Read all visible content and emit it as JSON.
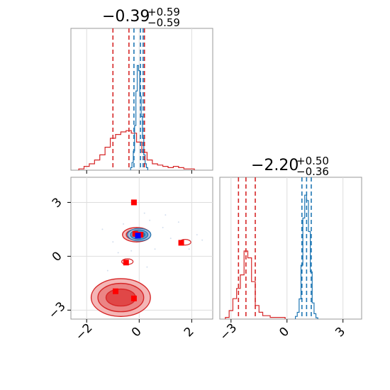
{
  "chart_data": {
    "type": "corner",
    "colors": {
      "model_a": "#1f77b4",
      "model_b": "#d62728",
      "truth_a": "#0000ff",
      "truth_b": "#ff0000"
    },
    "grid": true,
    "panels": {
      "hist_x": {
        "type": "step-histogram",
        "title_value": "−0.39",
        "title_plus": "+0.59",
        "title_minus": "−0.59",
        "x_range": [
          -2.6,
          2.8
        ],
        "x_ticks": [
          -2,
          0,
          2
        ],
        "quantiles": {
          "blue": [
            -0.2,
            0.05,
            0.15
          ],
          "red": [
            -1.0,
            -0.39,
            0.2
          ]
        },
        "blue_hist": {
          "x": [
            -0.3,
            -0.25,
            -0.2,
            -0.15,
            -0.1,
            -0.05,
            0.0,
            0.05,
            0.1,
            0.15,
            0.2,
            0.25,
            0.3
          ],
          "density": [
            0.02,
            0.06,
            0.15,
            0.35,
            0.62,
            0.82,
            0.78,
            0.58,
            0.42,
            0.25,
            0.12,
            0.05,
            0.02
          ]
        },
        "red_hist": {
          "x": [
            -2.2,
            -2.0,
            -1.8,
            -1.6,
            -1.4,
            -1.2,
            -1.0,
            -0.8,
            -0.6,
            -0.4,
            -0.2,
            0.0,
            0.2,
            0.4,
            0.6,
            0.8,
            1.0,
            1.2,
            1.4,
            1.6,
            1.8,
            2.0
          ],
          "density": [
            0.01,
            0.03,
            0.05,
            0.08,
            0.12,
            0.18,
            0.25,
            0.28,
            0.3,
            0.31,
            0.29,
            0.22,
            0.14,
            0.08,
            0.05,
            0.04,
            0.03,
            0.02,
            0.03,
            0.02,
            0.01,
            0.01
          ]
        }
      },
      "hist_y": {
        "type": "step-histogram",
        "title_value": "−2.20",
        "title_plus": "+0.50",
        "title_minus": "−0.36",
        "x_range": [
          -3.6,
          4.0
        ],
        "x_ticks": [
          -3,
          0,
          3
        ],
        "quantiles": {
          "blue": [
            0.8,
            1.05,
            1.3
          ],
          "red": [
            -2.6,
            -2.2,
            -1.7
          ]
        },
        "blue_hist": {
          "x": [
            0.5,
            0.6,
            0.7,
            0.8,
            0.9,
            1.0,
            1.1,
            1.2,
            1.3,
            1.4,
            1.5,
            1.6
          ],
          "density": [
            0.02,
            0.05,
            0.15,
            0.4,
            0.75,
            0.92,
            0.88,
            0.65,
            0.35,
            0.12,
            0.04,
            0.01
          ]
        },
        "red_hist": {
          "x": [
            -3.2,
            -3.0,
            -2.8,
            -2.6,
            -2.4,
            -2.2,
            -2.0,
            -1.8,
            -1.6,
            -1.4,
            -1.2,
            -1.0,
            -0.8,
            -0.6,
            -0.4,
            -0.2
          ],
          "density": [
            0.01,
            0.05,
            0.12,
            0.18,
            0.26,
            0.4,
            0.36,
            0.22,
            0.08,
            0.04,
            0.02,
            0.02,
            0.01,
            0.01,
            0.01,
            0.01
          ]
        }
      },
      "joint": {
        "type": "contour-scatter",
        "x_range": [
          -2.6,
          2.8
        ],
        "y_range": [
          -3.5,
          4.4
        ],
        "x_ticks": [
          -2,
          0,
          2
        ],
        "y_ticks": [
          -3,
          0,
          3
        ],
        "blue_blob": {
          "cx": 0.0,
          "cy": 1.2,
          "rx": [
            0.6,
            0.45,
            0.3
          ],
          "ry": [
            0.4,
            0.3,
            0.18
          ]
        },
        "red_main": {
          "cx": -0.7,
          "cy": -2.3,
          "rx": [
            2.2,
            1.7,
            1.1
          ],
          "ry": [
            1.0,
            0.75,
            0.45
          ]
        },
        "red_upper": {
          "cx": -0.1,
          "cy": 1.2,
          "rx": [
            0.75,
            0.55
          ],
          "ry": [
            0.48,
            0.35
          ]
        },
        "blue_truth": [
          {
            "x": -0.05,
            "y": 1.15
          }
        ],
        "red_truth": [
          {
            "x": -0.2,
            "y": 3.0
          },
          {
            "x": -0.15,
            "y": 1.25
          },
          {
            "x": 0.05,
            "y": 1.2
          },
          {
            "x": 1.6,
            "y": 0.75
          },
          {
            "x": -0.5,
            "y": -0.35
          },
          {
            "x": -0.9,
            "y": -1.95
          },
          {
            "x": -0.2,
            "y": -2.35
          }
        ]
      }
    }
  }
}
